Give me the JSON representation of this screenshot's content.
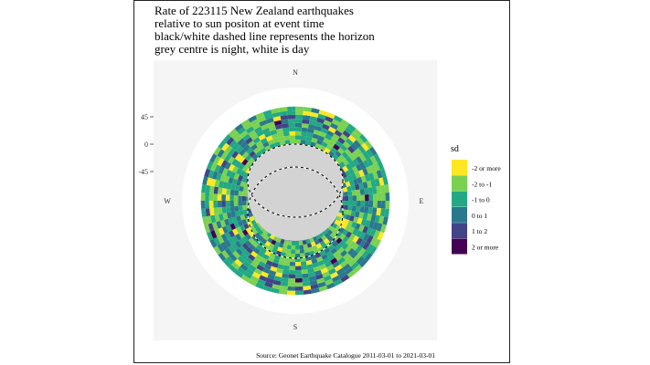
{
  "chart_data": {
    "type": "heatmap",
    "projection": "polar",
    "title_lines": [
      "Rate of 223115 New Zealand earthquakes",
      "relative to sun positon at event time",
      "black/white dashed line represents the horizon",
      "grey centre is night, white is day"
    ],
    "caption": "Source: Geonet Earthquake Catalogue 2011-03-01 to 2021-03-01",
    "compass": {
      "north": "N",
      "south": "S",
      "east": "E",
      "west": "W"
    },
    "y_ticks": [
      "45",
      "0",
      "-45"
    ],
    "legend": {
      "title": "sd",
      "placement": "right",
      "entries": [
        {
          "label": "-2 or more",
          "color": "#FDE725"
        },
        {
          "label": "-2 to -1",
          "color": "#7AD151"
        },
        {
          "label": "-1 to 0",
          "color": "#22A884"
        },
        {
          "label": "0 to 1",
          "color": "#2A788E"
        },
        {
          "label": "1 to 2",
          "color": "#414487"
        },
        {
          "label": "2 or more",
          "color": "#440154"
        }
      ]
    },
    "colors": {
      "panel": "#F5F5F5",
      "sky_disc": "#FFFFFF",
      "night": "#D3D3D3"
    },
    "altitude_range": [
      -90,
      90
    ],
    "band_altitude_range": [
      -60,
      45
    ],
    "share_by_sd_bin": [
      0.18,
      0.24,
      0.22,
      0.18,
      0.1,
      0.08
    ]
  }
}
